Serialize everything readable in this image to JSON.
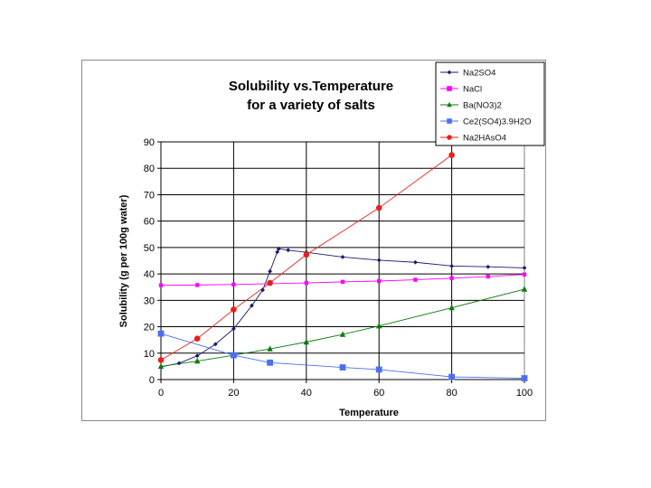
{
  "chart_data": {
    "type": "line",
    "title_lines": [
      "Solubility vs.Temperature",
      "for a variety of salts"
    ],
    "xlabel": "Temperature",
    "ylabel": "Solubility (g per 100g water)",
    "xlim": [
      0,
      100
    ],
    "ylim": [
      0,
      90
    ],
    "xticks": [
      0,
      20,
      40,
      60,
      80,
      100
    ],
    "yticks": [
      0,
      10,
      20,
      30,
      40,
      50,
      60,
      70,
      80,
      90
    ],
    "grid": "horizontal and vertical major",
    "legend_position": "top-right",
    "series": [
      {
        "name": "Na2SO4",
        "color": "#1b1b6e",
        "marker": "diamond",
        "x": [
          0,
          5,
          10,
          15,
          20,
          25,
          28,
          30,
          32,
          32.4,
          35,
          40,
          50,
          60,
          70,
          80,
          90,
          100
        ],
        "y": [
          4.8,
          6.2,
          9,
          13.4,
          19.2,
          28,
          33.9,
          41,
          48.3,
          49.5,
          49,
          48.2,
          46.4,
          45.2,
          44.4,
          43,
          42.7,
          42.3
        ]
      },
      {
        "name": "NaCl",
        "color": "#ff00ff",
        "marker": "square",
        "x": [
          0,
          10,
          20,
          30,
          40,
          50,
          60,
          70,
          80,
          90,
          100
        ],
        "y": [
          35.7,
          35.8,
          36,
          36.3,
          36.6,
          37,
          37.3,
          37.8,
          38.4,
          39,
          39.8
        ]
      },
      {
        "name": "Ba(NO3)2",
        "color": "#0b7a0b",
        "marker": "triangle",
        "x": [
          0,
          10,
          20,
          30,
          40,
          50,
          60,
          80,
          100
        ],
        "y": [
          5,
          7,
          9.2,
          11.6,
          14.2,
          17.1,
          20.3,
          27.2,
          34.2
        ]
      },
      {
        "name": "Ce2(SO4)3.9H2O",
        "color": "#4a6ef5",
        "marker": "square",
        "x": [
          0,
          20,
          30,
          50,
          60,
          80,
          100
        ],
        "y": [
          17.4,
          9.2,
          6.4,
          4.6,
          3.8,
          1,
          0.5
        ]
      },
      {
        "name": "Na2HAsO4",
        "color": "#e8201c",
        "marker": "circle",
        "x": [
          0,
          10,
          20,
          30,
          40,
          60,
          80
        ],
        "y": [
          7.4,
          15.5,
          26.5,
          36.6,
          47.3,
          65,
          85
        ]
      }
    ]
  }
}
